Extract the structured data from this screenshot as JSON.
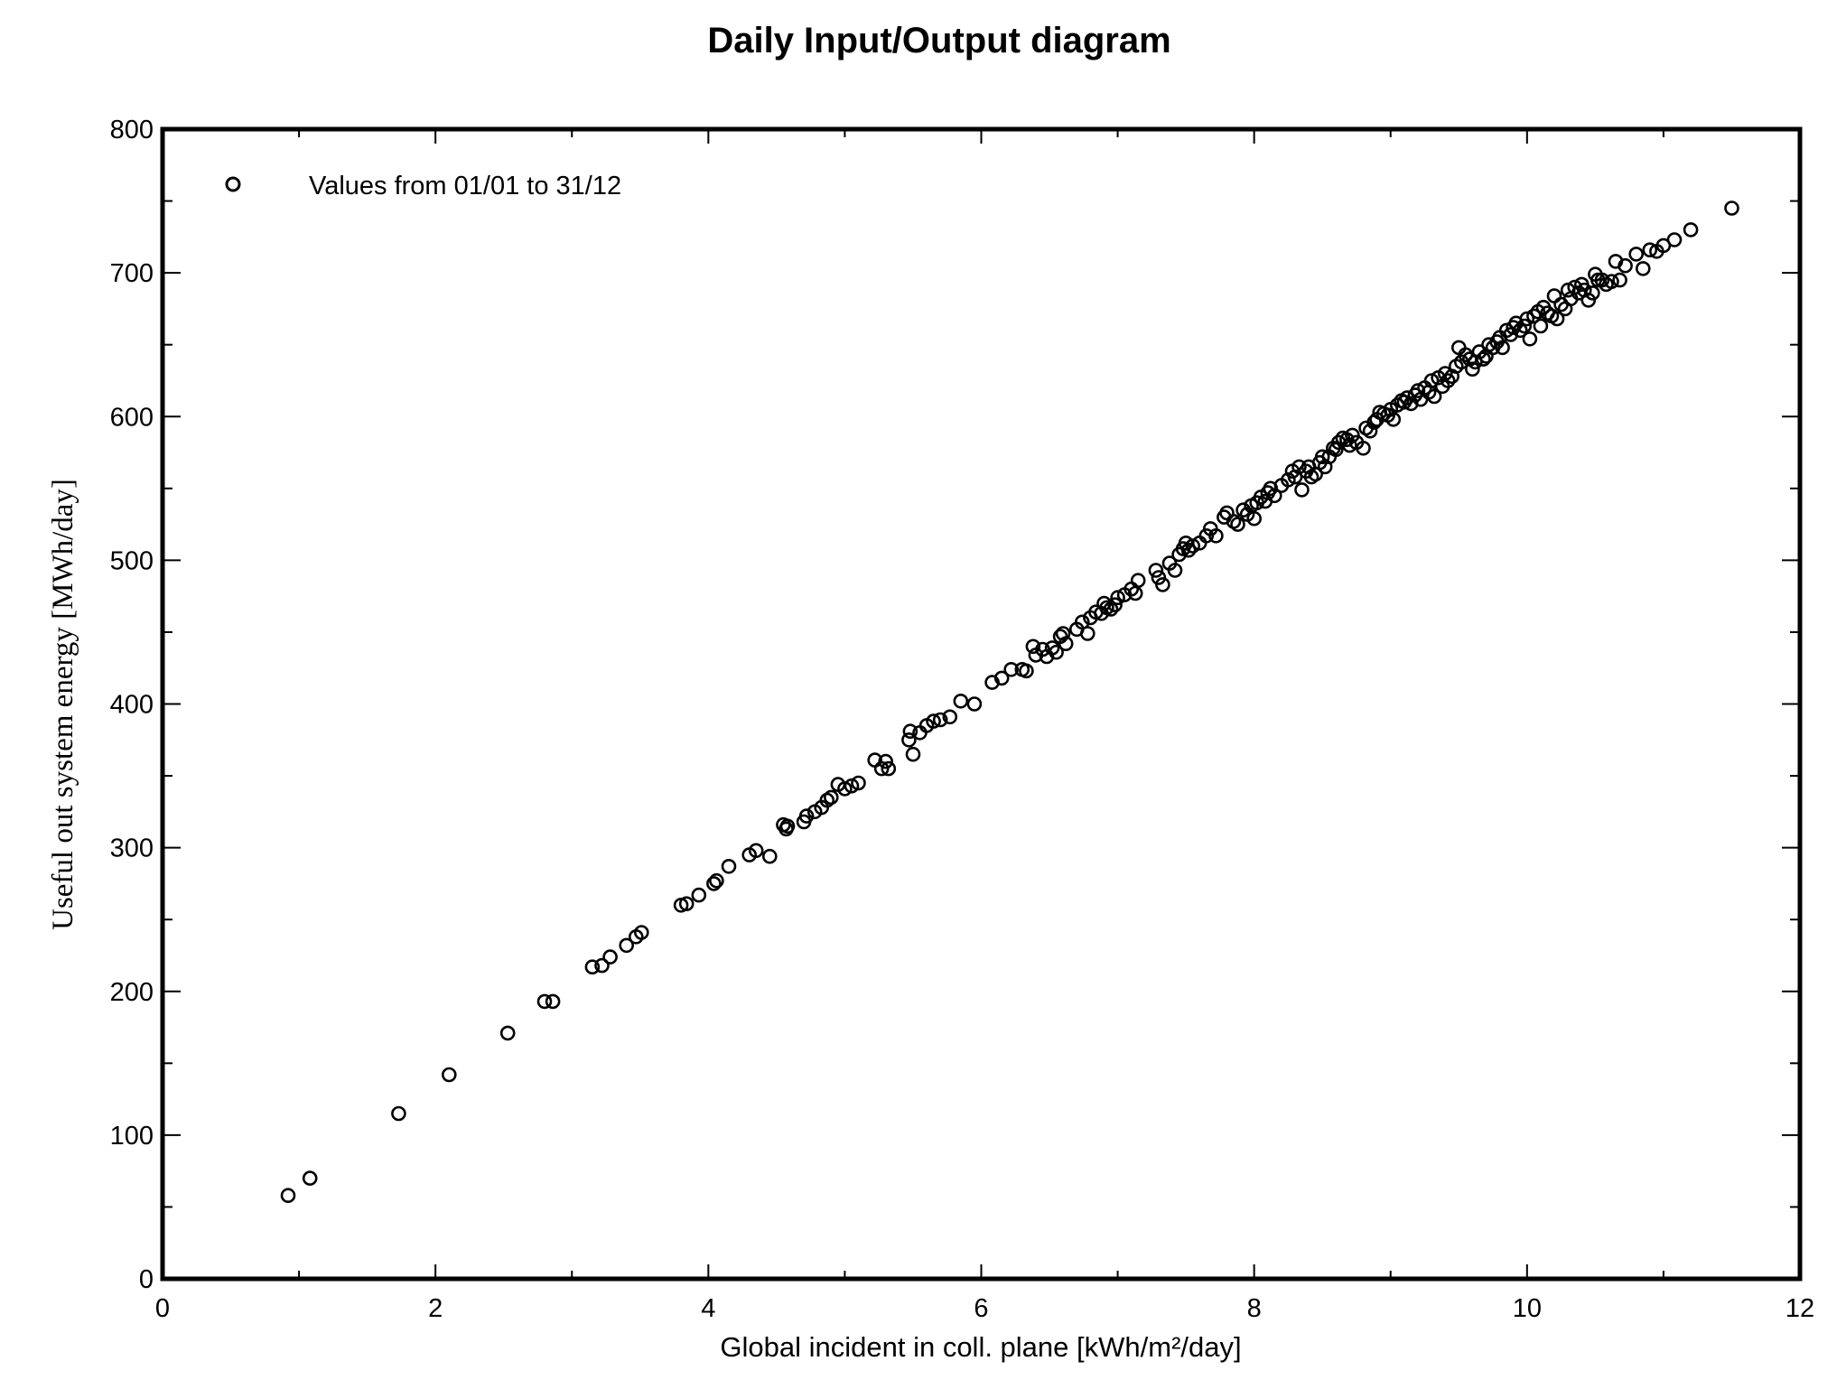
{
  "chart_data": {
    "type": "scatter",
    "title": "Daily Input/Output diagram",
    "xlabel": "Global incident in coll. plane [kWh/m²/day]",
    "ylabel": "Useful out system energy [MWh/day]",
    "xlim": [
      0,
      12
    ],
    "ylim": [
      0,
      800
    ],
    "xticks": [
      0,
      2,
      4,
      6,
      8,
      10,
      12
    ],
    "yticks": [
      0,
      100,
      200,
      300,
      400,
      500,
      600,
      700,
      800
    ],
    "grid": false,
    "legend_position": "top-left",
    "series": [
      {
        "name": "Values from 01/01 to 31/12",
        "marker": "open-circle",
        "color": "#000000",
        "points": [
          [
            0.92,
            58
          ],
          [
            1.08,
            70
          ],
          [
            1.73,
            115
          ],
          [
            2.1,
            142
          ],
          [
            2.53,
            171
          ],
          [
            2.8,
            193
          ],
          [
            2.86,
            193
          ],
          [
            3.15,
            217
          ],
          [
            3.22,
            218
          ],
          [
            3.28,
            224
          ],
          [
            3.4,
            232
          ],
          [
            3.47,
            238
          ],
          [
            3.51,
            241
          ],
          [
            3.8,
            260
          ],
          [
            3.84,
            261
          ],
          [
            3.93,
            267
          ],
          [
            4.04,
            275
          ],
          [
            4.06,
            277
          ],
          [
            4.15,
            287
          ],
          [
            4.3,
            295
          ],
          [
            4.35,
            298
          ],
          [
            4.45,
            294
          ],
          [
            4.55,
            316
          ],
          [
            4.57,
            313
          ],
          [
            4.58,
            315
          ],
          [
            4.7,
            318
          ],
          [
            4.72,
            322
          ],
          [
            4.78,
            325
          ],
          [
            4.83,
            328
          ],
          [
            4.87,
            333
          ],
          [
            4.9,
            335
          ],
          [
            4.95,
            344
          ],
          [
            5.0,
            341
          ],
          [
            5.05,
            343
          ],
          [
            5.1,
            345
          ],
          [
            5.22,
            361
          ],
          [
            5.27,
            355
          ],
          [
            5.3,
            360
          ],
          [
            5.32,
            355
          ],
          [
            5.47,
            375
          ],
          [
            5.48,
            381
          ],
          [
            5.5,
            365
          ],
          [
            5.55,
            380
          ],
          [
            5.6,
            385
          ],
          [
            5.65,
            388
          ],
          [
            5.7,
            389
          ],
          [
            5.77,
            391
          ],
          [
            5.85,
            402
          ],
          [
            5.95,
            400
          ],
          [
            6.08,
            415
          ],
          [
            6.15,
            418
          ],
          [
            6.22,
            424
          ],
          [
            6.3,
            424
          ],
          [
            6.33,
            423
          ],
          [
            6.38,
            440
          ],
          [
            6.4,
            434
          ],
          [
            6.45,
            438
          ],
          [
            6.48,
            433
          ],
          [
            6.52,
            439
          ],
          [
            6.55,
            436
          ],
          [
            6.58,
            447
          ],
          [
            6.6,
            449
          ],
          [
            6.62,
            442
          ],
          [
            6.7,
            452
          ],
          [
            6.74,
            457
          ],
          [
            6.78,
            449
          ],
          [
            6.8,
            460
          ],
          [
            6.84,
            464
          ],
          [
            6.88,
            463
          ],
          [
            6.9,
            470
          ],
          [
            6.92,
            467
          ],
          [
            6.95,
            466
          ],
          [
            6.98,
            469
          ],
          [
            7.0,
            474
          ],
          [
            7.05,
            476
          ],
          [
            7.1,
            480
          ],
          [
            7.13,
            477
          ],
          [
            7.15,
            486
          ],
          [
            7.28,
            493
          ],
          [
            7.3,
            488
          ],
          [
            7.33,
            483
          ],
          [
            7.38,
            498
          ],
          [
            7.42,
            493
          ],
          [
            7.45,
            504
          ],
          [
            7.48,
            508
          ],
          [
            7.5,
            512
          ],
          [
            7.52,
            507
          ],
          [
            7.55,
            510
          ],
          [
            7.6,
            512
          ],
          [
            7.65,
            517
          ],
          [
            7.68,
            522
          ],
          [
            7.72,
            517
          ],
          [
            7.78,
            530
          ],
          [
            7.8,
            533
          ],
          [
            7.85,
            527
          ],
          [
            7.88,
            525
          ],
          [
            7.92,
            535
          ],
          [
            7.95,
            532
          ],
          [
            7.98,
            538
          ],
          [
            8.0,
            529
          ],
          [
            8.02,
            540
          ],
          [
            8.05,
            544
          ],
          [
            8.08,
            541
          ],
          [
            8.1,
            547
          ],
          [
            8.12,
            550
          ],
          [
            8.15,
            545
          ],
          [
            8.2,
            552
          ],
          [
            8.25,
            556
          ],
          [
            8.28,
            562
          ],
          [
            8.3,
            558
          ],
          [
            8.33,
            565
          ],
          [
            8.35,
            549
          ],
          [
            8.38,
            562
          ],
          [
            8.4,
            565
          ],
          [
            8.42,
            558
          ],
          [
            8.45,
            560
          ],
          [
            8.48,
            568
          ],
          [
            8.5,
            572
          ],
          [
            8.52,
            565
          ],
          [
            8.55,
            572
          ],
          [
            8.58,
            578
          ],
          [
            8.6,
            577
          ],
          [
            8.62,
            582
          ],
          [
            8.65,
            585
          ],
          [
            8.68,
            584
          ],
          [
            8.7,
            580
          ],
          [
            8.72,
            587
          ],
          [
            8.75,
            582
          ],
          [
            8.8,
            578
          ],
          [
            8.82,
            592
          ],
          [
            8.85,
            590
          ],
          [
            8.88,
            596
          ],
          [
            8.9,
            598
          ],
          [
            8.92,
            603
          ],
          [
            8.95,
            602
          ],
          [
            8.98,
            601
          ],
          [
            9.0,
            605
          ],
          [
            9.02,
            598
          ],
          [
            9.05,
            608
          ],
          [
            9.08,
            611
          ],
          [
            9.1,
            610
          ],
          [
            9.12,
            613
          ],
          [
            9.15,
            609
          ],
          [
            9.18,
            615
          ],
          [
            9.2,
            618
          ],
          [
            9.22,
            612
          ],
          [
            9.25,
            620
          ],
          [
            9.28,
            617
          ],
          [
            9.3,
            625
          ],
          [
            9.32,
            614
          ],
          [
            9.35,
            627
          ],
          [
            9.38,
            621
          ],
          [
            9.4,
            630
          ],
          [
            9.42,
            625
          ],
          [
            9.45,
            628
          ],
          [
            9.48,
            635
          ],
          [
            9.5,
            648
          ],
          [
            9.52,
            638
          ],
          [
            9.55,
            643
          ],
          [
            9.58,
            640
          ],
          [
            9.6,
            633
          ],
          [
            9.62,
            638
          ],
          [
            9.65,
            645
          ],
          [
            9.68,
            640
          ],
          [
            9.7,
            642
          ],
          [
            9.72,
            650
          ],
          [
            9.75,
            648
          ],
          [
            9.78,
            652
          ],
          [
            9.8,
            655
          ],
          [
            9.82,
            648
          ],
          [
            9.85,
            660
          ],
          [
            9.88,
            657
          ],
          [
            9.9,
            662
          ],
          [
            9.92,
            665
          ],
          [
            9.95,
            660
          ],
          [
            9.98,
            663
          ],
          [
            10.0,
            668
          ],
          [
            10.02,
            654
          ],
          [
            10.05,
            670
          ],
          [
            10.08,
            673
          ],
          [
            10.1,
            663
          ],
          [
            10.12,
            676
          ],
          [
            10.15,
            672
          ],
          [
            10.18,
            670
          ],
          [
            10.2,
            684
          ],
          [
            10.22,
            668
          ],
          [
            10.25,
            678
          ],
          [
            10.28,
            675
          ],
          [
            10.3,
            688
          ],
          [
            10.32,
            682
          ],
          [
            10.35,
            690
          ],
          [
            10.38,
            686
          ],
          [
            10.4,
            692
          ],
          [
            10.42,
            688
          ],
          [
            10.45,
            681
          ],
          [
            10.48,
            686
          ],
          [
            10.5,
            699
          ],
          [
            10.52,
            695
          ],
          [
            10.55,
            695
          ],
          [
            10.58,
            692
          ],
          [
            10.62,
            694
          ],
          [
            10.65,
            708
          ],
          [
            10.68,
            695
          ],
          [
            10.72,
            705
          ],
          [
            10.8,
            713
          ],
          [
            10.85,
            703
          ],
          [
            10.9,
            716
          ],
          [
            10.95,
            715
          ],
          [
            11.0,
            719
          ],
          [
            11.08,
            723
          ],
          [
            11.2,
            730
          ],
          [
            11.5,
            745
          ]
        ]
      }
    ]
  }
}
